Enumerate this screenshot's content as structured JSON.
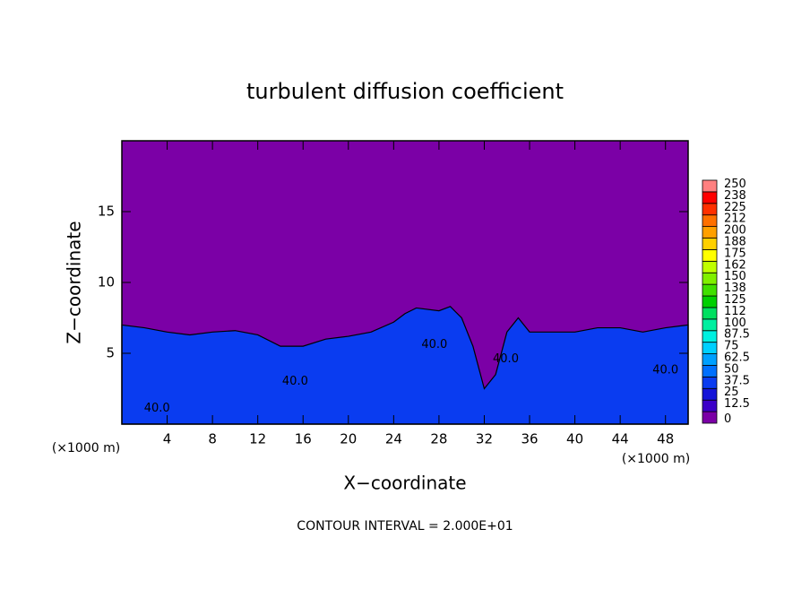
{
  "chart_data": {
    "type": "contour",
    "title": "turbulent diffusion coefficient",
    "x_label": "X−coordinate",
    "y_label": "Z−coordinate",
    "x_unit": "(×1000 m)",
    "y_unit": "(×1000 m)",
    "footer": "CONTOUR INTERVAL = 2.000E+01",
    "xlim": [
      0,
      50
    ],
    "xticks": [
      4,
      8,
      12,
      16,
      20,
      24,
      28,
      32,
      36,
      40,
      44,
      48
    ],
    "ylim": [
      0,
      20
    ],
    "yticks": [
      5,
      10,
      15
    ],
    "background_color": "#7b00a6",
    "layer_top": {
      "color": "#0a3cf0",
      "x": [
        0,
        2,
        4,
        6,
        8,
        10,
        12,
        14,
        16,
        18,
        20,
        22,
        24,
        25,
        26,
        28,
        29,
        30,
        31,
        32,
        33,
        34,
        35,
        36,
        38,
        40,
        42,
        44,
        46,
        48,
        50
      ],
      "z": [
        7,
        6.8,
        6.5,
        6.3,
        6.5,
        6.6,
        6.3,
        5.5,
        5.5,
        6,
        6.2,
        6.5,
        7.2,
        7.8,
        8.2,
        8,
        8.3,
        7.5,
        5.5,
        2.5,
        3.5,
        6.5,
        7.5,
        6.5,
        6.5,
        6.5,
        6.8,
        6.8,
        6.5,
        6.8,
        7
      ]
    },
    "contour_labels": [
      {
        "text": "40.0",
        "x": 15.3,
        "z": 3.0
      },
      {
        "text": "40.0",
        "x": 3.1,
        "z": 1.1
      },
      {
        "text": "40.0",
        "x": 27.6,
        "z": 5.6
      },
      {
        "text": "40.0",
        "x": 33.9,
        "z": 4.6
      },
      {
        "text": "40.0",
        "x": 48.0,
        "z": 3.8
      }
    ],
    "colorbar": {
      "levels": [
        0,
        12.5,
        25,
        37.5,
        50,
        62.5,
        75,
        87.5,
        100,
        112,
        125,
        138,
        150,
        162,
        175,
        188,
        200,
        212,
        225,
        238,
        250
      ],
      "colors": [
        "#7b00a6",
        "#3c00c8",
        "#1414d8",
        "#0a3cf0",
        "#0070ff",
        "#00a0ff",
        "#00d0ff",
        "#00f0e0",
        "#00f0a0",
        "#00e060",
        "#00d000",
        "#40e000",
        "#80f000",
        "#c0ff00",
        "#ffff00",
        "#ffd000",
        "#ffa000",
        "#ff7000",
        "#ff3000",
        "#ff0000",
        "#ff8080"
      ]
    }
  }
}
